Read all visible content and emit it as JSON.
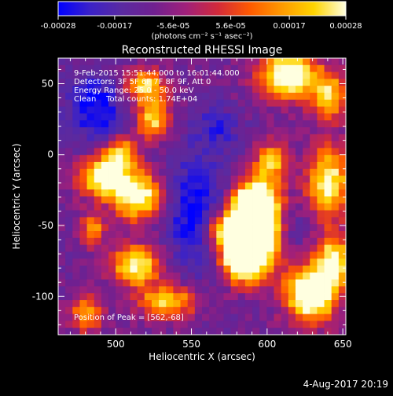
{
  "chart_data": {
    "type": "heatmap",
    "title": "Reconstructed RHESSI Image",
    "xlabel": "Heliocentric X (arcsec)",
    "ylabel": "Heliocentric Y (arcsec)",
    "xlim": [
      462,
      652
    ],
    "ylim": [
      -127,
      68
    ],
    "x_ticks": [
      500,
      550,
      600,
      650
    ],
    "y_ticks": [
      50,
      0,
      -50,
      -100
    ],
    "colorbar": {
      "range": [
        -0.00028,
        0.00028
      ],
      "tick_values": [
        -0.00028,
        -0.00017,
        -5.6e-05,
        5.6e-05,
        0.00017,
        0.00028
      ],
      "tick_labels": [
        "-0.00028",
        "-0.00017",
        "-5.6e-05",
        "5.6e-05",
        "0.00017",
        "0.00028"
      ],
      "units_label": "(photons cm⁻² s⁻¹ asec⁻²)"
    },
    "colormap": [
      "#0000ff",
      "#3b22c8",
      "#5a2aa0",
      "#702090",
      "#a0207a",
      "#d22a3a",
      "#ff5a00",
      "#ff9a00",
      "#ffd400",
      "#ffffe0"
    ],
    "grid": false,
    "annotations": {
      "time_range": "9-Feb-2015 15:51:44.000 to 16:01:44.000",
      "detectors": "Detectors: 3F 5F 6F 7F 8F 9F, Att 0",
      "energy_range": "Energy Range: 25.0 - 50.0 keV",
      "clean_counts": "Clean    Total counts: 1.74E+04",
      "peak_position": "Position of Peak = [562,-68]"
    },
    "peak": {
      "x": 562,
      "y": -68
    },
    "total_counts": 17400,
    "energy_range_kev": [
      25.0,
      50.0
    ]
  },
  "footer": {
    "date_stamp": "4-Aug-2017 20:19"
  }
}
